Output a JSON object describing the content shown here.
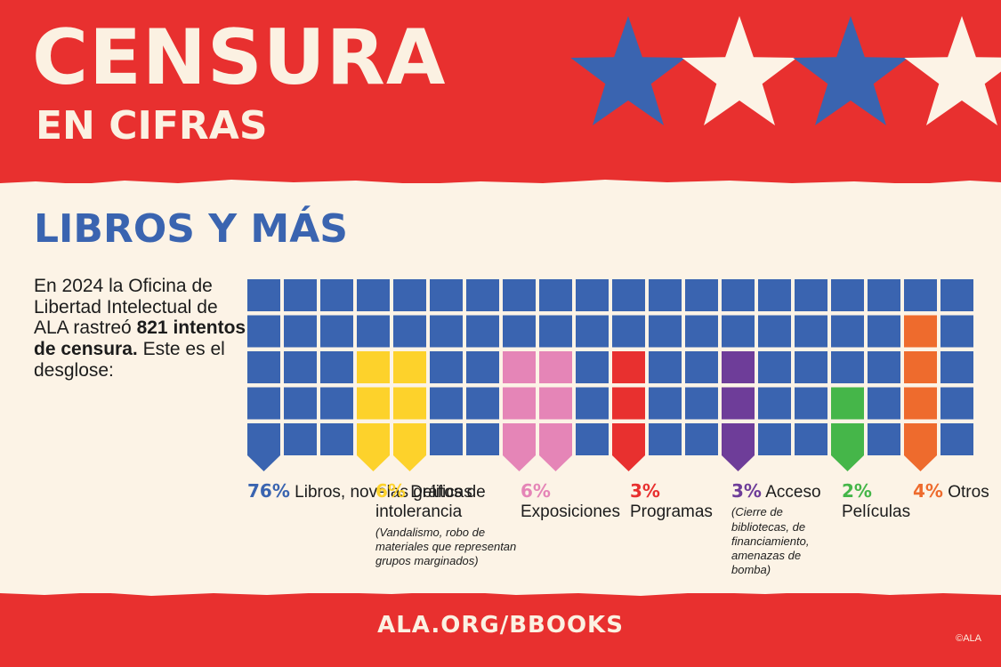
{
  "header": {
    "title": "CENSURA",
    "subtitle": "EN CIFRAS",
    "stars": [
      "blue",
      "cream",
      "blue",
      "cream"
    ]
  },
  "section_title": "LIBROS Y MÁS",
  "intro": {
    "line_before": "En 2024 la Oficina de Libertad Intelectual de ALA rastreó",
    "bold": "821 intentos de censura.",
    "line_after": "Este es el desglose:"
  },
  "chart_data": {
    "type": "waffle",
    "title": "",
    "rows": 5,
    "columns": 20,
    "total_units": 100,
    "base_color": "#3a64b0",
    "categories": [
      {
        "pct_label": "76%",
        "value": 76,
        "label": "Libros, novelas gráficas",
        "note": "",
        "color": "#3a64b0"
      },
      {
        "pct_label": "6%",
        "value": 6,
        "label": "Delitos de intolerancia",
        "note": "(Vandalismo, robo de materiales que representan grupos marginados)",
        "color": "#fdd22b"
      },
      {
        "pct_label": "6%",
        "value": 6,
        "label": "Exposiciones",
        "note": "",
        "color": "#e585b7"
      },
      {
        "pct_label": "3%",
        "value": 3,
        "label": "Programas",
        "note": "",
        "color": "#e8302f"
      },
      {
        "pct_label": "3%",
        "value": 3,
        "label": "Acceso",
        "note": "(Cierre de bibliotecas, de financiamiento, amenazas de bomba)",
        "color": "#6e3d99"
      },
      {
        "pct_label": "2%",
        "value": 2,
        "label": "Películas",
        "note": "",
        "color": "#45b649"
      },
      {
        "pct_label": "4%",
        "value": 4,
        "label": "Otros",
        "note": "",
        "color": "#ee6b2d"
      }
    ],
    "highlight_columns": [
      {
        "category": 0,
        "column": 0,
        "rows": 0
      },
      {
        "category": 1,
        "column": 3,
        "rows": 3
      },
      {
        "category": 1,
        "column": 4,
        "rows": 3
      },
      {
        "category": 2,
        "column": 7,
        "rows": 3
      },
      {
        "category": 2,
        "column": 8,
        "rows": 3
      },
      {
        "category": 3,
        "column": 10,
        "rows": 3
      },
      {
        "category": 4,
        "column": 13,
        "rows": 3
      },
      {
        "category": 5,
        "column": 16,
        "rows": 2
      },
      {
        "category": 6,
        "column": 18,
        "rows": 4
      }
    ]
  },
  "footer": {
    "url": "ALA.ORG/BBOOKS",
    "copyright": "©ALA"
  },
  "colors": {
    "red": "#e8302f",
    "cream": "#fcf3e6",
    "blue": "#3a64b0"
  }
}
